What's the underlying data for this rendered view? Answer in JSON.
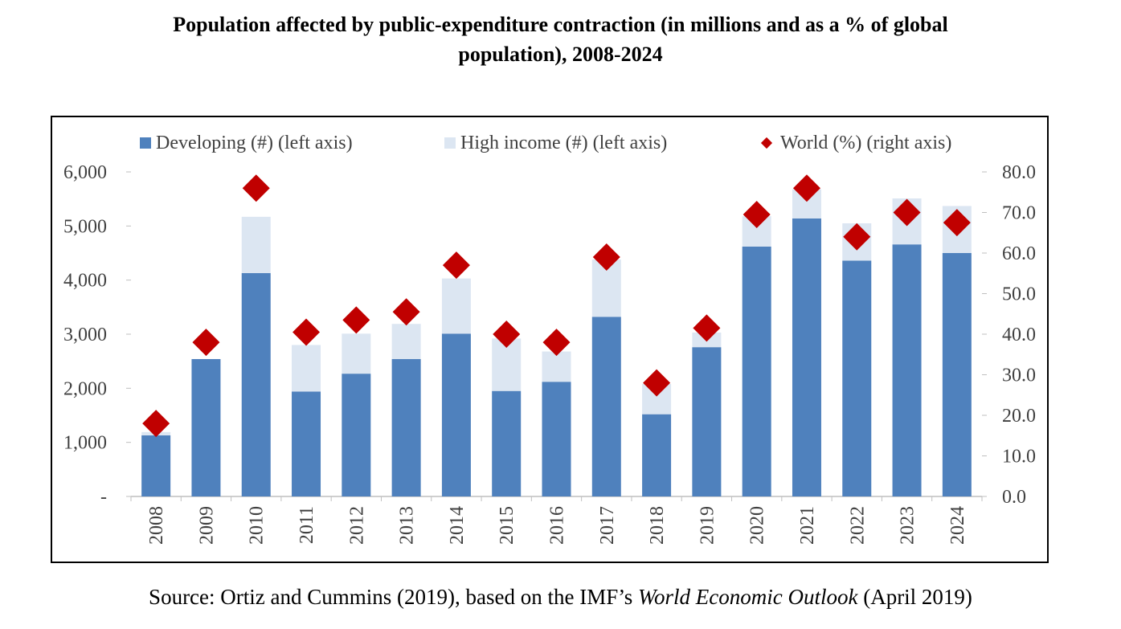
{
  "title_lines": [
    "Population affected by public-expenditure contraction (in millions and as a % of global",
    "population), 2008-2024"
  ],
  "legend": {
    "developing": "Developing (#) (left axis)",
    "high_income": "High income (#) (left axis)",
    "world": "World (%) (right axis)"
  },
  "colors": {
    "developing": "#4f81bd",
    "high_income": "#dce6f2",
    "world": "#c00000"
  },
  "source": {
    "before": "Source: Ortiz and Cummins (2019), based on the IMF’s ",
    "italic": "World Economic Outlook",
    "after": " (April 2019)"
  },
  "chart_data": {
    "type": "bar",
    "stacked": true,
    "categories": [
      "2008",
      "2009",
      "2010",
      "2011",
      "2012",
      "2013",
      "2014",
      "2015",
      "2016",
      "2017",
      "2018",
      "2019",
      "2020",
      "2021",
      "2022",
      "2023",
      "2024"
    ],
    "series": [
      {
        "name": "Developing (#) (left axis)",
        "axis": "left",
        "type": "bar",
        "values": [
          1130,
          2540,
          4130,
          1940,
          2270,
          2540,
          3010,
          1950,
          2120,
          3320,
          1520,
          2760,
          4620,
          5140,
          4360,
          4660,
          4500
        ]
      },
      {
        "name": "High income (#) (left axis)",
        "axis": "left",
        "type": "bar",
        "values": [
          60,
          0,
          1040,
          860,
          740,
          650,
          1020,
          970,
          560,
          1060,
          560,
          270,
          560,
          540,
          690,
          850,
          870
        ]
      },
      {
        "name": "World (%) (right axis)",
        "axis": "right",
        "type": "scatter",
        "marker": "diamond",
        "values": [
          18.0,
          38.0,
          76.0,
          40.5,
          43.5,
          45.5,
          57.0,
          40.0,
          38.0,
          59.0,
          28.0,
          41.5,
          69.5,
          76.0,
          64.0,
          70.0,
          67.5
        ]
      }
    ],
    "y_left": {
      "ylim": [
        0,
        6000
      ],
      "ticks": [
        0,
        1000,
        2000,
        3000,
        4000,
        5000,
        6000
      ],
      "tick_labels": [
        "-",
        "1,000",
        "2,000",
        "3,000",
        "4,000",
        "5,000",
        "6,000"
      ]
    },
    "y_right": {
      "ylim": [
        0,
        80
      ],
      "ticks": [
        0,
        10,
        20,
        30,
        40,
        50,
        60,
        70,
        80
      ],
      "tick_labels": [
        "0.0",
        "10.0",
        "20.0",
        "30.0",
        "40.0",
        "50.0",
        "60.0",
        "70.0",
        "80.0"
      ]
    },
    "grid": false,
    "legend_position": "top"
  }
}
